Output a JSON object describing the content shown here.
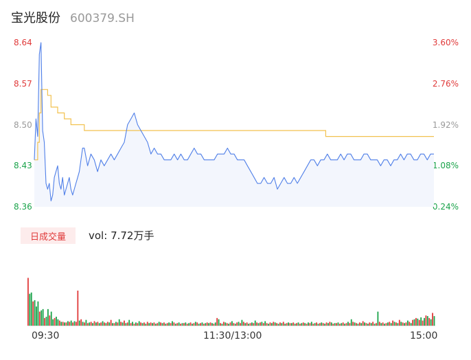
{
  "header": {
    "stock_name": "宝光股份",
    "stock_code": "600379.SH"
  },
  "volume_panel": {
    "tab_label": "日成交量",
    "vol_label": "vol:",
    "vol_value": "7.72万手"
  },
  "x_tick_labels": [
    "09:30",
    "11:30/13:00",
    "15:00"
  ],
  "colors": {
    "price_line": "#4f7fe8",
    "avg_line": "#f2c14e",
    "up": "#e03a3a",
    "down": "#1aa34a",
    "neutral": "#999999"
  },
  "chart_data": [
    {
      "type": "line",
      "title": "",
      "x_domain_minutes": [
        0,
        240
      ],
      "ylim": [
        8.36,
        8.64
      ],
      "y_ticks": [
        {
          "label": "8.64",
          "pct": "3.60%",
          "color": "up"
        },
        {
          "label": "8.57",
          "pct": "2.76%",
          "color": "up"
        },
        {
          "label": "8.50",
          "pct": "1.92%",
          "color": "neutral"
        },
        {
          "label": "8.43",
          "pct": "1.08%",
          "color": "down"
        },
        {
          "label": "8.36",
          "pct": "0.24%",
          "color": "down"
        }
      ],
      "series": [
        {
          "role": "price",
          "x": [
            0,
            1,
            2,
            3,
            4,
            5,
            6,
            7,
            8,
            9,
            10,
            11,
            12,
            13,
            14,
            15,
            16,
            17,
            18,
            19,
            20,
            21,
            22,
            23,
            24,
            25,
            26,
            27,
            28,
            29,
            30,
            32,
            34,
            36,
            38,
            40,
            42,
            44,
            46,
            48,
            50,
            52,
            54,
            56,
            58,
            60,
            62,
            64,
            66,
            68,
            70,
            72,
            74,
            76,
            78,
            80,
            82,
            84,
            86,
            88,
            90,
            92,
            94,
            96,
            98,
            100,
            102,
            104,
            106,
            108,
            110,
            112,
            114,
            116,
            118,
            120,
            122,
            124,
            126,
            128,
            130,
            132,
            134,
            136,
            138,
            140,
            142,
            144,
            146,
            148,
            150,
            152,
            154,
            156,
            158,
            160,
            162,
            164,
            166,
            168,
            170,
            172,
            174,
            176,
            178,
            180,
            182,
            184,
            186,
            188,
            190,
            192,
            194,
            196,
            198,
            200,
            202,
            204,
            206,
            208,
            210,
            212,
            214,
            216,
            218,
            220,
            222,
            224,
            226,
            228,
            230,
            232,
            234,
            236,
            238,
            240
          ],
          "values": [
            8.44,
            8.51,
            8.48,
            8.62,
            8.64,
            8.49,
            8.47,
            8.4,
            8.39,
            8.4,
            8.37,
            8.38,
            8.41,
            8.42,
            8.43,
            8.4,
            8.39,
            8.41,
            8.38,
            8.39,
            8.4,
            8.41,
            8.39,
            8.38,
            8.39,
            8.4,
            8.41,
            8.42,
            8.44,
            8.46,
            8.46,
            8.43,
            8.45,
            8.44,
            8.42,
            8.44,
            8.43,
            8.44,
            8.45,
            8.44,
            8.45,
            8.46,
            8.47,
            8.5,
            8.51,
            8.52,
            8.5,
            8.49,
            8.48,
            8.47,
            8.45,
            8.46,
            8.45,
            8.45,
            8.44,
            8.44,
            8.44,
            8.45,
            8.44,
            8.45,
            8.44,
            8.44,
            8.45,
            8.46,
            8.45,
            8.45,
            8.44,
            8.44,
            8.44,
            8.44,
            8.45,
            8.45,
            8.45,
            8.46,
            8.45,
            8.45,
            8.44,
            8.44,
            8.44,
            8.43,
            8.42,
            8.41,
            8.4,
            8.4,
            8.41,
            8.4,
            8.4,
            8.41,
            8.39,
            8.4,
            8.41,
            8.4,
            8.4,
            8.41,
            8.4,
            8.41,
            8.42,
            8.43,
            8.44,
            8.44,
            8.43,
            8.44,
            8.44,
            8.45,
            8.44,
            8.44,
            8.44,
            8.45,
            8.44,
            8.45,
            8.45,
            8.44,
            8.44,
            8.44,
            8.45,
            8.45,
            8.44,
            8.44,
            8.44,
            8.43,
            8.44,
            8.44,
            8.43,
            8.44,
            8.44,
            8.45,
            8.44,
            8.45,
            8.45,
            8.44,
            8.44,
            8.45,
            8.45,
            8.44,
            8.45,
            8.45
          ]
        },
        {
          "role": "average",
          "x": [
            0,
            2,
            3,
            4,
            5,
            8,
            10,
            14,
            18,
            22,
            26,
            30,
            36,
            50,
            70,
            90,
            110,
            130,
            150,
            170,
            175,
            180,
            200,
            220,
            240
          ],
          "values": [
            8.44,
            8.47,
            8.52,
            8.56,
            8.56,
            8.55,
            8.53,
            8.52,
            8.51,
            8.5,
            8.5,
            8.49,
            8.49,
            8.49,
            8.49,
            8.49,
            8.49,
            8.49,
            8.49,
            8.49,
            8.48,
            8.48,
            8.48,
            8.48,
            8.48
          ]
        }
      ]
    },
    {
      "type": "bar",
      "title": "",
      "x_domain_minutes": [
        0,
        240
      ],
      "values": [
        75,
        50,
        52,
        38,
        40,
        30,
        38,
        22,
        24,
        26,
        12,
        14,
        26,
        16,
        22,
        10,
        12,
        14,
        10,
        8,
        6,
        6,
        5,
        5,
        7,
        6,
        8,
        5,
        7,
        6,
        55,
        8,
        10,
        6,
        5,
        9,
        4,
        5,
        6,
        4,
        7,
        5,
        6,
        4,
        5,
        7,
        5,
        4,
        6,
        5,
        9,
        4,
        4,
        6,
        5,
        10,
        6,
        5,
        8,
        4,
        5,
        9,
        4,
        6,
        3,
        5,
        4,
        7,
        5,
        4,
        5,
        3,
        6,
        4,
        5,
        4,
        5,
        3,
        4,
        6,
        5,
        4,
        5,
        3,
        4,
        5,
        4,
        7,
        5,
        3,
        4,
        5,
        3,
        4,
        4,
        5,
        3,
        4,
        5,
        3,
        4,
        6,
        5,
        3,
        4,
        5,
        3,
        4,
        5,
        4,
        5,
        4,
        3,
        5,
        12,
        10,
        4,
        3,
        6,
        5,
        4,
        3,
        5,
        7,
        4,
        3,
        5,
        6,
        4,
        9,
        6,
        4,
        5,
        3,
        4,
        5,
        4,
        8,
        5,
        4,
        5,
        6,
        4,
        7,
        4,
        3,
        5,
        4,
        6,
        5,
        4,
        3,
        5,
        4,
        6,
        3,
        4,
        5,
        4,
        4,
        5,
        3,
        4,
        5,
        3,
        4,
        5,
        4,
        3,
        5,
        4,
        6,
        3,
        4,
        5,
        3,
        4,
        5,
        4,
        3,
        5,
        4,
        6,
        5,
        3,
        4,
        4,
        5,
        3,
        4,
        5,
        3,
        4,
        6,
        4,
        10,
        6,
        5,
        4,
        3,
        5,
        4,
        7,
        5,
        4,
        3,
        5,
        4,
        6,
        3,
        4,
        22,
        6,
        4,
        5,
        3,
        4,
        5,
        6,
        4,
        8,
        6,
        5,
        4,
        9,
        6,
        5,
        4,
        5,
        8,
        6,
        4,
        9,
        10,
        12,
        11,
        9,
        13,
        8,
        12,
        16,
        15,
        12,
        10,
        20,
        15
      ],
      "colors": [
        "up",
        "down",
        "down",
        "up",
        "down",
        "down",
        "down",
        "up",
        "down",
        "down",
        "up",
        "down",
        "down",
        "up",
        "down",
        "down",
        "up",
        "down",
        "down",
        "up",
        "down",
        "up",
        "down",
        "up",
        "down",
        "up",
        "down",
        "up",
        "down",
        "up",
        "up",
        "down",
        "up",
        "down",
        "up",
        "down",
        "up",
        "down",
        "up",
        "down",
        "up",
        "down",
        "up",
        "down",
        "up",
        "down",
        "up",
        "down",
        "up",
        "down",
        "up",
        "down",
        "up",
        "down",
        "up",
        "down",
        "up",
        "down",
        "up",
        "down",
        "up",
        "down",
        "up",
        "down",
        "up",
        "down",
        "up",
        "down",
        "up",
        "down",
        "up",
        "down",
        "up",
        "down",
        "up",
        "down",
        "up",
        "down",
        "up",
        "down",
        "up",
        "down",
        "up",
        "down",
        "up",
        "down",
        "up",
        "down",
        "up",
        "down",
        "up",
        "down",
        "up",
        "down",
        "up",
        "down",
        "up",
        "down",
        "up",
        "down",
        "up",
        "down",
        "up",
        "down",
        "up",
        "down",
        "up",
        "down",
        "up",
        "down",
        "up",
        "down",
        "up",
        "down",
        "up",
        "down",
        "up",
        "down",
        "up",
        "down",
        "up",
        "down",
        "up",
        "down",
        "up",
        "down",
        "up",
        "down",
        "up",
        "down",
        "up",
        "down",
        "up",
        "down",
        "up",
        "down",
        "up",
        "down",
        "up",
        "down",
        "up",
        "down",
        "up",
        "down",
        "up",
        "down",
        "up",
        "down",
        "up",
        "down",
        "up",
        "down",
        "up",
        "down",
        "up",
        "down",
        "up",
        "down",
        "up",
        "down",
        "up",
        "down",
        "up",
        "down",
        "up",
        "down",
        "up",
        "down",
        "up",
        "down",
        "up",
        "down",
        "up",
        "down",
        "up",
        "down",
        "up",
        "down",
        "up",
        "down",
        "up",
        "down",
        "up",
        "down",
        "up",
        "down",
        "up",
        "down",
        "up",
        "down",
        "up",
        "down",
        "up",
        "down",
        "up",
        "down",
        "up",
        "down",
        "up",
        "down",
        "up",
        "down",
        "up",
        "down",
        "up",
        "down",
        "up",
        "down",
        "up",
        "down",
        "up",
        "down",
        "up",
        "down",
        "up",
        "down",
        "up",
        "down",
        "up",
        "down",
        "up",
        "down",
        "up",
        "down",
        "up",
        "down",
        "up",
        "down",
        "up",
        "down",
        "up",
        "down",
        "up",
        "down",
        "up",
        "down",
        "up",
        "down",
        "up",
        "down",
        "up",
        "down",
        "up",
        "down",
        "up",
        "down",
        "up",
        "down",
        "up",
        "down",
        "up",
        "down",
        "up",
        "down"
      ],
      "ylim": [
        0,
        110
      ]
    }
  ]
}
